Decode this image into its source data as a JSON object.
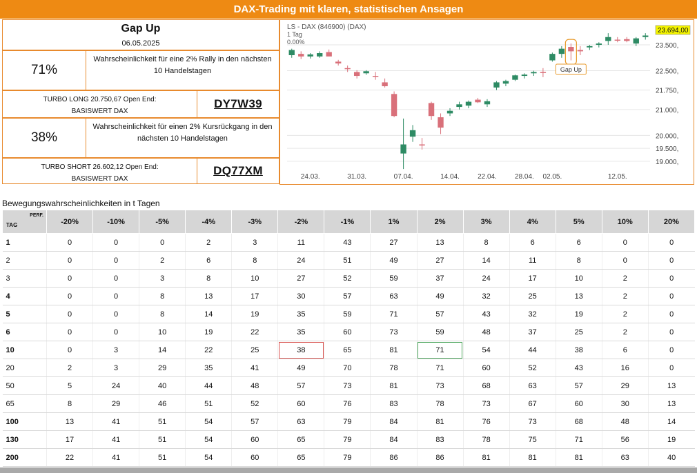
{
  "banner": "DAX-Trading mit klaren, statistischen Ansagen",
  "header": {
    "title": "Gap Up",
    "date": "06.05.2025"
  },
  "long": {
    "percent": "71%",
    "desc_line1": "Wahrscheinlichkeit für eine 2% Rally in den nächsten",
    "desc_line2": "10 Handelstagen",
    "turbo_line1": "TURBO LONG 20.750,67 Open End:",
    "turbo_line2": "BASISWERT DAX",
    "code": "DY7W39"
  },
  "short": {
    "percent": "38%",
    "desc_line1": "Wahrscheinlichkeit für einen 2% Kursrückgang in den",
    "desc_line2": "nächsten 10 Handelstagen",
    "turbo_line1": "TURBO SHORT 26.602,12 Open End:",
    "turbo_line2": "BASISWERT DAX",
    "code": "DQ77XM"
  },
  "chart": {
    "title": "LS - DAX (846900) (DAX)",
    "period": "1 Tag",
    "change": "0.00%",
    "price_label": "23.694,00",
    "annotation": "Gap Up",
    "colors": {
      "up": "#2e8b64",
      "down": "#d9707a",
      "price_bg": "#f4f400",
      "grid": "#e6e6e6"
    }
  },
  "chart_data": {
    "type": "candlestick",
    "ylim": [
      18650,
      24300
    ],
    "y_ticks": [
      {
        "v": 19000,
        "label": "19.000,"
      },
      {
        "v": 19500,
        "label": "19.500,"
      },
      {
        "v": 20000,
        "label": "20.000,"
      },
      {
        "v": 21000,
        "label": "21.000,"
      },
      {
        "v": 21750,
        "label": "21.750,"
      },
      {
        "v": 22500,
        "label": "22.500,"
      },
      {
        "v": 23500,
        "label": "23.500,"
      }
    ],
    "x_labels": [
      {
        "i": 2,
        "label": "24.03."
      },
      {
        "i": 7,
        "label": "31.03."
      },
      {
        "i": 12,
        "label": "07.04."
      },
      {
        "i": 17,
        "label": "14.04."
      },
      {
        "i": 21,
        "label": "22.04."
      },
      {
        "i": 25,
        "label": "28.04."
      },
      {
        "i": 28,
        "label": "02.05."
      },
      {
        "i": 35,
        "label": "12.05."
      }
    ],
    "gap_up_index": 30,
    "candles": [
      {
        "o": 23100,
        "h": 23350,
        "l": 23000,
        "c": 23300
      },
      {
        "o": 23150,
        "h": 23250,
        "l": 22950,
        "c": 23050
      },
      {
        "o": 23050,
        "h": 23180,
        "l": 22970,
        "c": 23130
      },
      {
        "o": 23050,
        "h": 23250,
        "l": 23000,
        "c": 23180
      },
      {
        "o": 23220,
        "h": 23320,
        "l": 23060,
        "c": 23050
      },
      {
        "o": 22850,
        "h": 22920,
        "l": 22700,
        "c": 22780
      },
      {
        "o": 22600,
        "h": 22700,
        "l": 22450,
        "c": 22560
      },
      {
        "o": 22450,
        "h": 22520,
        "l": 22200,
        "c": 22300
      },
      {
        "o": 22400,
        "h": 22520,
        "l": 22340,
        "c": 22480
      },
      {
        "o": 22300,
        "h": 22450,
        "l": 22150,
        "c": 22280
      },
      {
        "o": 22050,
        "h": 22200,
        "l": 21850,
        "c": 21900
      },
      {
        "o": 21600,
        "h": 21700,
        "l": 20700,
        "c": 20750
      },
      {
        "o": 19300,
        "h": 20650,
        "l": 18700,
        "c": 19650
      },
      {
        "o": 19950,
        "h": 20400,
        "l": 19750,
        "c": 20200
      },
      {
        "o": 19650,
        "h": 19900,
        "l": 19450,
        "c": 19620
      },
      {
        "o": 21250,
        "h": 21300,
        "l": 20600,
        "c": 20750
      },
      {
        "o": 20700,
        "h": 20850,
        "l": 20050,
        "c": 20300
      },
      {
        "o": 20850,
        "h": 21050,
        "l": 20750,
        "c": 20950
      },
      {
        "o": 21100,
        "h": 21300,
        "l": 21000,
        "c": 21200
      },
      {
        "o": 21150,
        "h": 21350,
        "l": 21050,
        "c": 21300
      },
      {
        "o": 21380,
        "h": 21450,
        "l": 21250,
        "c": 21280
      },
      {
        "o": 21200,
        "h": 21400,
        "l": 21100,
        "c": 21320
      },
      {
        "o": 21850,
        "h": 22100,
        "l": 21750,
        "c": 22050
      },
      {
        "o": 22000,
        "h": 22150,
        "l": 21900,
        "c": 22100
      },
      {
        "o": 22150,
        "h": 22350,
        "l": 22100,
        "c": 22320
      },
      {
        "o": 22300,
        "h": 22400,
        "l": 22200,
        "c": 22350
      },
      {
        "o": 22400,
        "h": 22500,
        "l": 22300,
        "c": 22450
      },
      {
        "o": 22450,
        "h": 22600,
        "l": 22250,
        "c": 22420
      },
      {
        "o": 22900,
        "h": 23200,
        "l": 22850,
        "c": 23150
      },
      {
        "o": 23150,
        "h": 23450,
        "l": 23000,
        "c": 23350
      },
      {
        "o": 23420,
        "h": 23550,
        "l": 22900,
        "c": 23250
      },
      {
        "o": 23300,
        "h": 23450,
        "l": 23100,
        "c": 23250
      },
      {
        "o": 23400,
        "h": 23500,
        "l": 23300,
        "c": 23450
      },
      {
        "o": 23500,
        "h": 23600,
        "l": 23400,
        "c": 23550
      },
      {
        "o": 23650,
        "h": 23950,
        "l": 23500,
        "c": 23800
      },
      {
        "o": 23700,
        "h": 23800,
        "l": 23600,
        "c": 23680
      },
      {
        "o": 23720,
        "h": 23800,
        "l": 23600,
        "c": 23650
      },
      {
        "o": 23550,
        "h": 23800,
        "l": 23450,
        "c": 23750
      },
      {
        "o": 23800,
        "h": 23950,
        "l": 23700,
        "c": 23860
      }
    ]
  },
  "table": {
    "title": "Bewegungswahrscheinlichkeiten in t Tagen",
    "corner_tag": "TAG",
    "corner_perf": "PERF.",
    "columns": [
      "-20%",
      "-10%",
      "-5%",
      "-4%",
      "-3%",
      "-2%",
      "-1%",
      "1%",
      "2%",
      "3%",
      "4%",
      "5%",
      "10%",
      "20%"
    ],
    "rows": [
      {
        "tag": "1",
        "v": [
          "0",
          "0",
          "0",
          "2",
          "3",
          "11",
          "43",
          "27",
          "13",
          "8",
          "6",
          "6",
          "0",
          "0"
        ]
      },
      {
        "tag": "2",
        "v": [
          "0",
          "0",
          "2",
          "6",
          "8",
          "24",
          "51",
          "49",
          "27",
          "14",
          "11",
          "8",
          "0",
          "0"
        ]
      },
      {
        "tag": "3",
        "v": [
          "0",
          "0",
          "3",
          "8",
          "10",
          "27",
          "52",
          "59",
          "37",
          "24",
          "17",
          "10",
          "2",
          "0"
        ]
      },
      {
        "tag": "4",
        "v": [
          "0",
          "0",
          "8",
          "13",
          "17",
          "30",
          "57",
          "63",
          "49",
          "32",
          "25",
          "13",
          "2",
          "0"
        ]
      },
      {
        "tag": "5",
        "v": [
          "0",
          "0",
          "8",
          "14",
          "19",
          "35",
          "59",
          "71",
          "57",
          "43",
          "32",
          "19",
          "2",
          "0"
        ]
      },
      {
        "tag": "6",
        "v": [
          "0",
          "0",
          "10",
          "19",
          "22",
          "35",
          "60",
          "73",
          "59",
          "48",
          "37",
          "25",
          "2",
          "0"
        ]
      },
      {
        "tag": "10",
        "v": [
          "0",
          "3",
          "14",
          "22",
          "25",
          "38",
          "65",
          "81",
          "71",
          "54",
          "44",
          "38",
          "6",
          "0"
        ]
      },
      {
        "tag": "20",
        "v": [
          "2",
          "3",
          "29",
          "35",
          "41",
          "49",
          "70",
          "78",
          "71",
          "60",
          "52",
          "43",
          "16",
          "0"
        ]
      },
      {
        "tag": "50",
        "v": [
          "5",
          "24",
          "40",
          "44",
          "48",
          "57",
          "73",
          "81",
          "73",
          "68",
          "63",
          "57",
          "29",
          "13"
        ]
      },
      {
        "tag": "65",
        "v": [
          "8",
          "29",
          "46",
          "51",
          "52",
          "60",
          "76",
          "83",
          "78",
          "73",
          "67",
          "60",
          "30",
          "13"
        ]
      },
      {
        "tag": "100",
        "v": [
          "13",
          "41",
          "51",
          "54",
          "57",
          "63",
          "79",
          "84",
          "81",
          "76",
          "73",
          "68",
          "48",
          "14"
        ]
      },
      {
        "tag": "130",
        "v": [
          "17",
          "41",
          "51",
          "54",
          "60",
          "65",
          "79",
          "84",
          "83",
          "78",
          "75",
          "71",
          "56",
          "19"
        ]
      },
      {
        "tag": "200",
        "v": [
          "22",
          "41",
          "51",
          "54",
          "60",
          "65",
          "79",
          "86",
          "86",
          "81",
          "81",
          "81",
          "63",
          "40"
        ]
      }
    ]
  }
}
